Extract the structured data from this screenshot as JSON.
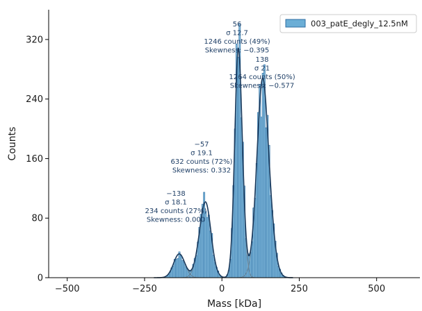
{
  "chart_data": {
    "type": "histogram",
    "xlabel": "Mass [kDa]",
    "ylabel": "Counts",
    "xlim": [
      -560,
      640
    ],
    "ylim": [
      0,
      360
    ],
    "xticks": [
      -500,
      -250,
      0,
      250,
      500
    ],
    "yticks": [
      0,
      80,
      160,
      240,
      320
    ],
    "legend": {
      "label": "003_patE_degly_12.5nM",
      "placement": "top-right"
    },
    "bin_width": 5,
    "peaks": [
      {
        "mu": -138,
        "sigma": 18.1,
        "counts": 234,
        "percent": 27,
        "skewness": 0.0,
        "amp": 32
      },
      {
        "mu": -57,
        "sigma": 19.1,
        "counts": 632,
        "percent": 72,
        "skewness": 0.332,
        "amp": 100
      },
      {
        "mu": 56,
        "sigma": 12.7,
        "counts": 1246,
        "percent": 49,
        "skewness": -0.395,
        "amp": 300
      },
      {
        "mu": 138,
        "sigma": 21,
        "counts": 1264,
        "percent": 50,
        "skewness": -0.577,
        "amp": 255
      }
    ],
    "annotations": [
      {
        "peak": -138,
        "lines": [
          "−138",
          "σ 18.1",
          "234 counts (27%)",
          "Skewness: 0.000"
        ]
      },
      {
        "peak": -57,
        "lines": [
          "−57",
          "σ 19.1",
          "632 counts (72%)",
          "Skewness: 0.332"
        ]
      },
      {
        "peak": 56,
        "lines": [
          "56",
          "σ 12.7",
          "1246 counts (49%)",
          "Skewness: −0.395"
        ]
      },
      {
        "peak": 138,
        "lines": [
          "138",
          "σ 21",
          "1264 counts (50%)",
          "Skewness: −0.577"
        ]
      }
    ],
    "colors": {
      "bar_fill": "#6baed6",
      "bar_edge": "#2f6ea3",
      "fit_line": "#1b3a5c",
      "component_line": "#6b7d8a",
      "annotation": "#1f3f66"
    }
  }
}
